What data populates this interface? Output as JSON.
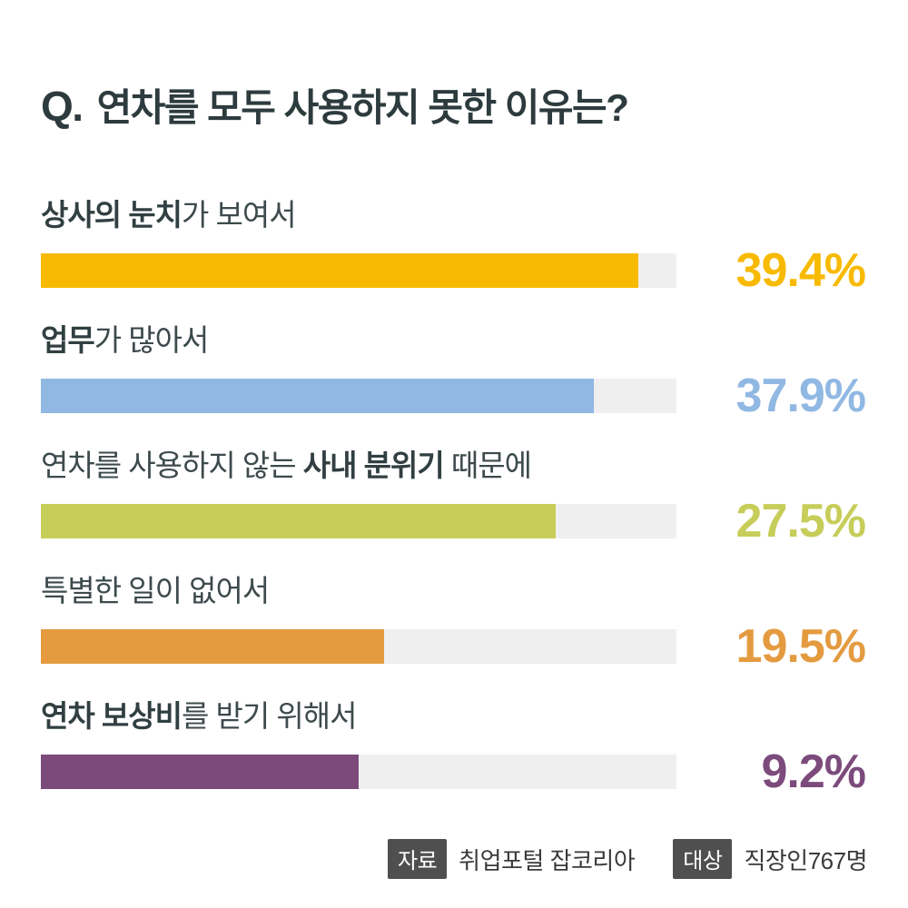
{
  "title": {
    "prefix": "Q.",
    "text": "연차를 모두 사용하지 못한 이유는?"
  },
  "chart_data": {
    "type": "bar",
    "orientation": "horizontal",
    "unit": "%",
    "title": "연차를 모두 사용하지 못한 이유는?",
    "categories": [
      "상사의 눈치가 보여서",
      "업무가 많아서",
      "연차를 사용하지 않는 사내 분위기 때문에",
      "특별한 일이 없어서",
      "연차 보상비를 받기 위해서"
    ],
    "values": [
      39.4,
      37.9,
      27.5,
      19.5,
      9.2
    ],
    "track_color": "#efefef",
    "items": [
      {
        "label_segments": [
          {
            "text": "상사의 눈치",
            "bold": true
          },
          {
            "text": "가 보여서",
            "bold": false
          }
        ],
        "value": 39.4,
        "value_label": "39.4%",
        "color": "#f8ba00",
        "fill_pct": 94
      },
      {
        "label_segments": [
          {
            "text": "업무",
            "bold": true
          },
          {
            "text": "가 많아서",
            "bold": false
          }
        ],
        "value": 37.9,
        "value_label": "37.9%",
        "color": "#90b8e3",
        "fill_pct": 87
      },
      {
        "label_segments": [
          {
            "text": "연차를 사용하지 않는 ",
            "bold": false
          },
          {
            "text": "사내 분위기",
            "bold": true
          },
          {
            "text": " 때문에",
            "bold": false
          }
        ],
        "value": 27.5,
        "value_label": "27.5%",
        "color": "#c7cd59",
        "fill_pct": 81
      },
      {
        "label_segments": [
          {
            "text": "특별한 일이 없어서",
            "bold": false
          }
        ],
        "value": 19.5,
        "value_label": "19.5%",
        "color": "#e49b40",
        "fill_pct": 54
      },
      {
        "label_segments": [
          {
            "text": "연차 보상비",
            "bold": true
          },
          {
            "text": "를 받기 위해서",
            "bold": false
          }
        ],
        "value": 9.2,
        "value_label": "9.2%",
        "color": "#7c4b7c",
        "fill_pct": 50
      }
    ]
  },
  "footer": {
    "source_badge": "자료",
    "source_text": "취업포털 잡코리아",
    "target_badge": "대상",
    "target_text": "직장인767명"
  }
}
